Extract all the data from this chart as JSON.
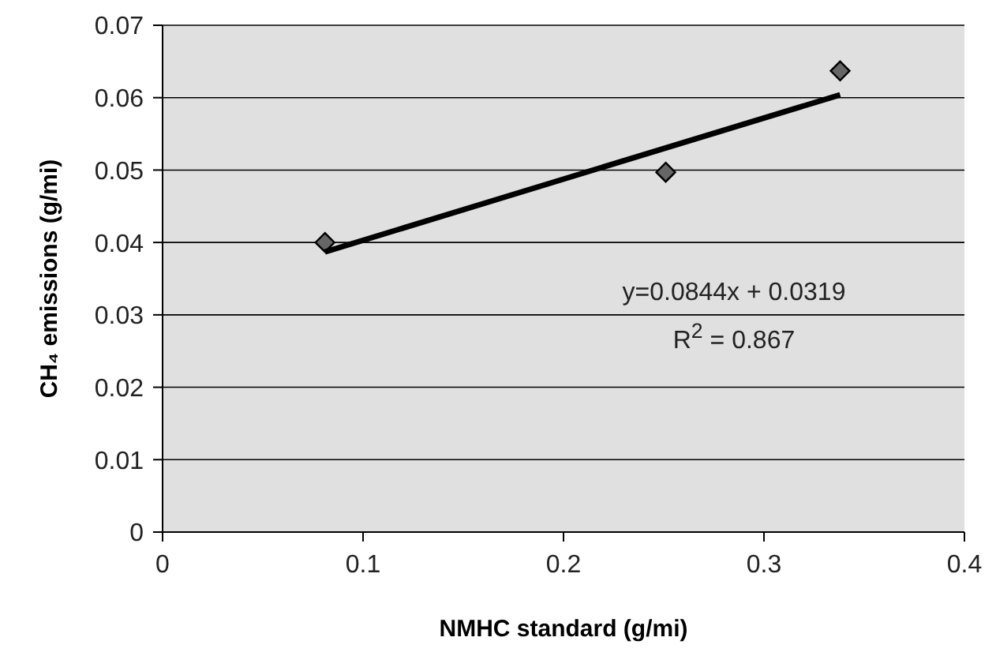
{
  "chart_data": {
    "type": "scatter",
    "xlabel": "NMHC standard (g/mi)",
    "ylabel": "CH₄ emissions (g/mi)",
    "series": [
      {
        "marker": "diamond",
        "color": "#666666",
        "x": [
          0.081,
          0.251,
          0.338
        ],
        "values": [
          0.04,
          0.0497,
          0.0637
        ]
      },
      {
        "type": "line",
        "marker": "none",
        "color": "#000000",
        "x": [
          0.081,
          0.338
        ],
        "values": [
          0.0387,
          0.0604
        ]
      }
    ],
    "xlim": [
      0,
      0.4
    ],
    "xticks": [
      0,
      0.1,
      0.2,
      0.3,
      0.4
    ],
    "ylim": [
      0,
      0.07
    ],
    "yticks": [
      0,
      0.01,
      0.02,
      0.03,
      0.04,
      0.05,
      0.06,
      0.07
    ],
    "grid": "y",
    "legend": false,
    "annotations": [
      "y=0.0844x + 0.0319",
      "R$^{2}$ = 0.867"
    ]
  }
}
